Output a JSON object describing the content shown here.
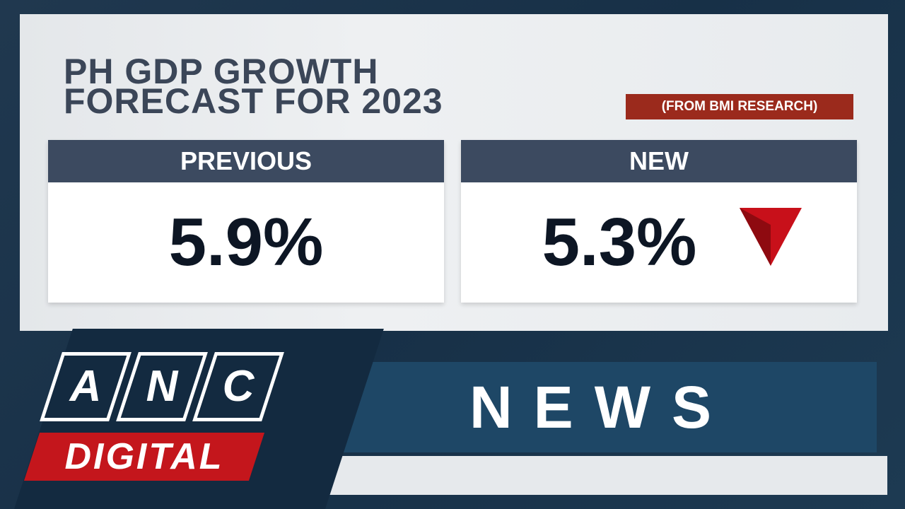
{
  "header": {
    "title_lines": [
      "PH GDP GROWTH",
      "FORECAST FOR 2023"
    ],
    "source": "(FROM BMI RESEARCH)"
  },
  "panels": [
    {
      "label": "PREVIOUS",
      "value": "5.9%"
    },
    {
      "label": "NEW",
      "value": "5.3%"
    }
  ],
  "branding": {
    "logo_letters": [
      "A",
      "N",
      "C"
    ],
    "subtitle": "DIGITAL"
  },
  "banner": {
    "text": "NEWS"
  }
}
